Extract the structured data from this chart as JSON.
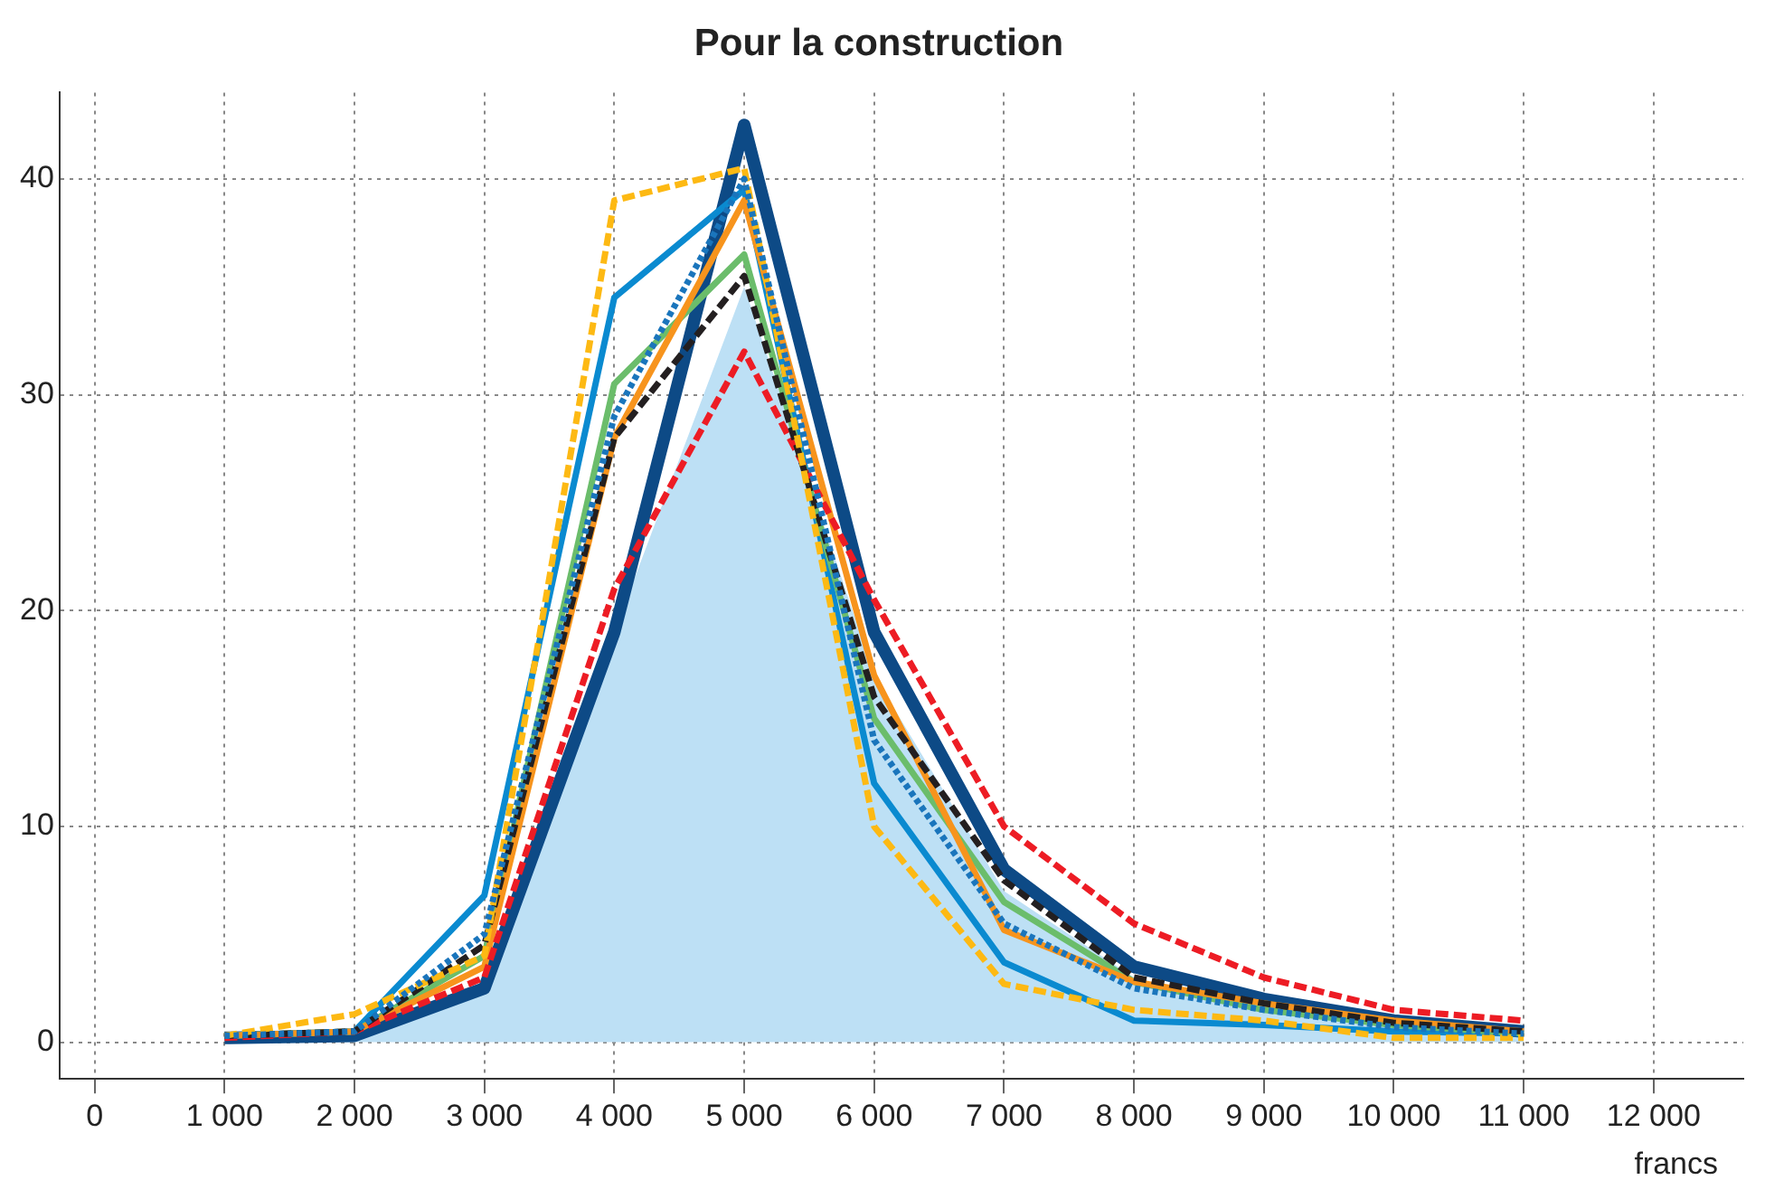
{
  "chart_data": {
    "type": "line",
    "title": "Pour la construction",
    "xlabel": "francs",
    "x": [
      1000,
      2000,
      3000,
      4000,
      5000,
      6000,
      7000,
      8000,
      9000,
      10000,
      11000
    ],
    "xlim": [
      -270,
      12690
    ],
    "ylim": [
      -1.7,
      44
    ],
    "xticks": [
      {
        "value": 0,
        "label": "0"
      },
      {
        "value": 1000,
        "label": "1 000"
      },
      {
        "value": 2000,
        "label": "2 000"
      },
      {
        "value": 3000,
        "label": "3 000"
      },
      {
        "value": 4000,
        "label": "4 000"
      },
      {
        "value": 5000,
        "label": "5 000"
      },
      {
        "value": 6000,
        "label": "6 000"
      },
      {
        "value": 7000,
        "label": "7 000"
      },
      {
        "value": 8000,
        "label": "8 000"
      },
      {
        "value": 9000,
        "label": "9 000"
      },
      {
        "value": 10000,
        "label": "10 000"
      },
      {
        "value": 11000,
        "label": "11 000"
      },
      {
        "value": 12000,
        "label": "12 000"
      }
    ],
    "yticks": [
      0,
      10,
      20,
      30,
      40
    ],
    "grid": true,
    "legend": false,
    "marker": "none",
    "series": [
      {
        "type": "area",
        "color": "#bde0f5",
        "values": [
          0,
          0.2,
          2.5,
          19,
          35,
          17,
          7,
          3,
          1.5,
          0.8,
          0.3
        ]
      },
      {
        "color": "#0d4a86",
        "line_style": "solid",
        "values": [
          0.2,
          0.3,
          2.5,
          19,
          42.5,
          19,
          8,
          3.5,
          2,
          1,
          0.5
        ]
      },
      {
        "color": "#0a8ad0",
        "line_style": "solid",
        "values": [
          0.3,
          0.5,
          6.8,
          34.5,
          39.5,
          12,
          3.7,
          1,
          0.8,
          0.5,
          0.4
        ]
      },
      {
        "color": "#6bbd6b",
        "line_style": "solid",
        "values": [
          0.3,
          0.5,
          4,
          30.5,
          36.5,
          15,
          6.5,
          2.8,
          1.5,
          0.8,
          0.4
        ]
      },
      {
        "color": "#f7941d",
        "line_style": "solid",
        "values": [
          0.3,
          0.5,
          3.5,
          28,
          39,
          17,
          5.2,
          2.8,
          1.8,
          1,
          0.5
        ]
      },
      {
        "color": "#1a75bc",
        "line_style": "dotted",
        "values": [
          0.3,
          0.5,
          5,
          29,
          40,
          14,
          5.5,
          2.5,
          1.5,
          0.7,
          0.4
        ]
      },
      {
        "color": "#fdb913",
        "line_style": "dashed",
        "values": [
          0.3,
          1.3,
          4,
          39,
          40.5,
          10,
          2.7,
          1.5,
          1,
          0.2,
          0.2
        ]
      },
      {
        "color": "#231f20",
        "line_style": "dashed",
        "values": [
          0.3,
          0.5,
          4.5,
          28,
          35.5,
          16,
          7.5,
          3,
          1.8,
          0.9,
          0.5
        ]
      },
      {
        "color": "#ed1c24",
        "line_style": "dashed",
        "values": [
          0.2,
          0.5,
          3,
          21,
          32,
          20.5,
          10,
          5.5,
          3,
          1.5,
          1
        ]
      }
    ]
  }
}
